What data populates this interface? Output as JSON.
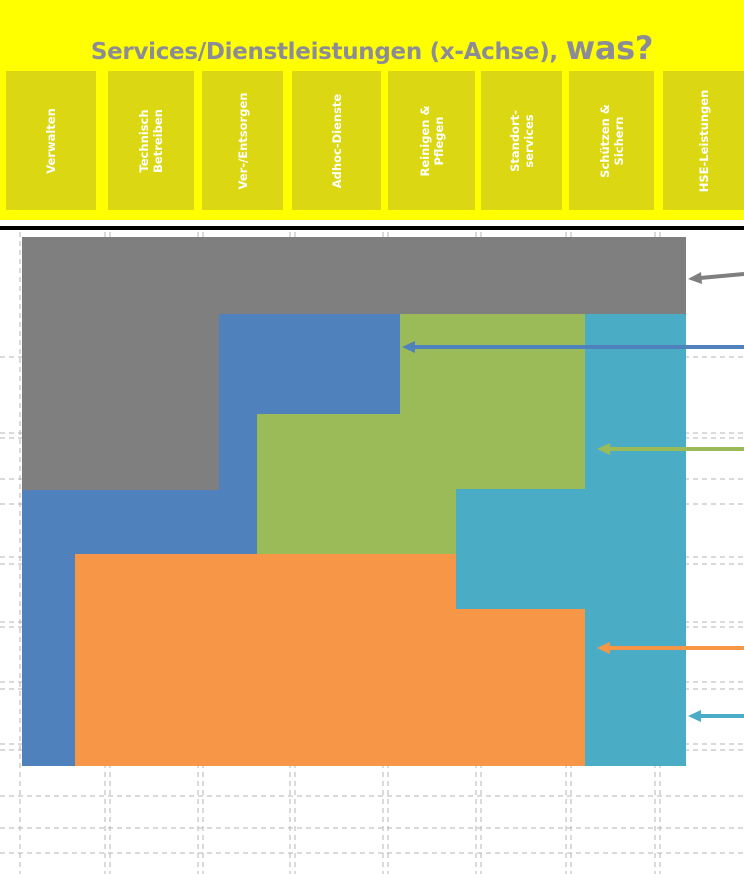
{
  "header": {
    "title": "Services/Dienstleistungen (x-Achse), ",
    "title_emphasis": "was?",
    "columns": [
      "Verwalten",
      "Technisch\nBetreiben",
      "Ver-/Entsorgen",
      "Adhoc-Dienste",
      "Reinigen &\nPflegen",
      "Standort-\nservices",
      "Schützen &\nSichern",
      "HSE-Leistungen"
    ]
  },
  "colors": {
    "header_bg": "#ffff00",
    "column_bg": "#dbd813",
    "title_text": "#8c8c96",
    "gray_block": "#7f7f7f",
    "blue_block": "#4f81bd",
    "green_block": "#9bbb59",
    "teal_block": "#4bacc6",
    "orange_block": "#f79646"
  }
}
